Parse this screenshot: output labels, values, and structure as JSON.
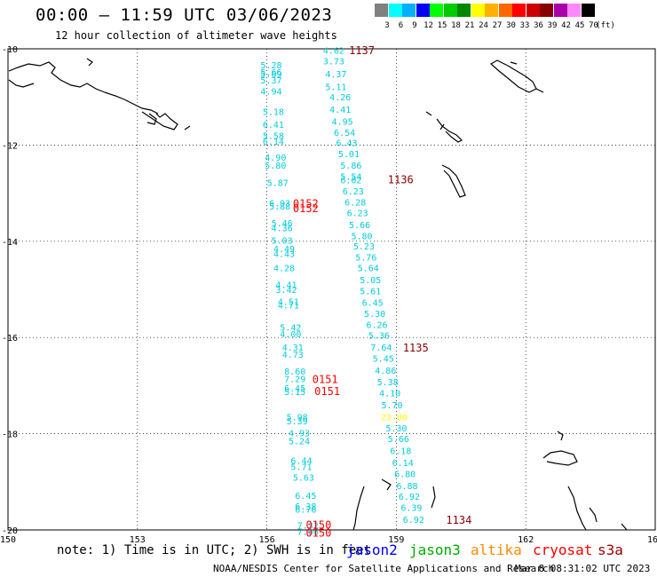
{
  "header": {
    "title": "00:00 – 11:59 UTC 03/06/2023",
    "subtitle": "12 hour collection of altimeter wave heights"
  },
  "legend": {
    "unit": "(ft)",
    "bins": [
      {
        "label": "3",
        "color": "#808080"
      },
      {
        "label": "6",
        "color": "#00ffff"
      },
      {
        "label": "9",
        "color": "#00b0ff"
      },
      {
        "label": "12",
        "color": "#0000ff"
      },
      {
        "label": "15",
        "color": "#00ff00"
      },
      {
        "label": "18",
        "color": "#00cc00"
      },
      {
        "label": "21",
        "color": "#008800"
      },
      {
        "label": "24",
        "color": "#ffff00"
      },
      {
        "label": "27",
        "color": "#ffb000"
      },
      {
        "label": "30",
        "color": "#ff6600"
      },
      {
        "label": "33",
        "color": "#ff0000"
      },
      {
        "label": "36",
        "color": "#cc0000"
      },
      {
        "label": "39",
        "color": "#880000"
      },
      {
        "label": "42",
        "color": "#aa00aa"
      },
      {
        "label": "45",
        "color": "#ff88ff"
      },
      {
        "label": "70",
        "color": "#000000"
      }
    ]
  },
  "map": {
    "lon_range": [
      150,
      165
    ],
    "lat_range": [
      -20,
      -10
    ],
    "lon_ticks": [
      "150",
      "153",
      "156",
      "159",
      "162",
      "165"
    ],
    "lat_ticks": [
      "-10",
      "-12",
      "-14",
      "-16",
      "-18",
      "-20"
    ],
    "grid": true
  },
  "passes": [
    {
      "label": "1137",
      "lon": 158.2,
      "lat": -10.02,
      "color": "#880000"
    },
    {
      "label": "1136",
      "lon": 159.1,
      "lat": -12.7,
      "color": "#880000"
    },
    {
      "label": "0152",
      "lon": 156.9,
      "lat": -13.2,
      "color": "#ff0000"
    },
    {
      "label": "0152",
      "lon": 156.9,
      "lat": -13.3,
      "color": "#ff0000"
    },
    {
      "label": "1135",
      "lon": 159.45,
      "lat": -16.2,
      "color": "#880000"
    },
    {
      "label": "0151",
      "lon": 157.35,
      "lat": -16.85,
      "color": "#ff0000"
    },
    {
      "label": "0151",
      "lon": 157.4,
      "lat": -17.1,
      "color": "#ff0000"
    },
    {
      "label": "1134",
      "lon": 160.45,
      "lat": -19.78,
      "color": "#880000"
    },
    {
      "label": "0150",
      "lon": 157.2,
      "lat": -19.88,
      "color": "#ff0000"
    },
    {
      "label": "0150",
      "lon": 157.2,
      "lat": -20.05,
      "color": "#ff0000"
    }
  ],
  "observations": [
    {
      "swh": "4.62",
      "lon": 157.55,
      "lat": -10.03
    },
    {
      "swh": "3.73",
      "lon": 157.55,
      "lat": -10.25
    },
    {
      "swh": "5.28",
      "lon": 156.1,
      "lat": -10.33
    },
    {
      "swh": "5.66",
      "lon": 156.1,
      "lat": -10.48
    },
    {
      "swh": "5.69",
      "lon": 156.1,
      "lat": -10.52
    },
    {
      "swh": "4.37",
      "lon": 157.6,
      "lat": -10.52
    },
    {
      "swh": "5.37",
      "lon": 156.1,
      "lat": -10.65
    },
    {
      "swh": "5.11",
      "lon": 157.6,
      "lat": -10.78
    },
    {
      "swh": "4.94",
      "lon": 156.1,
      "lat": -10.88
    },
    {
      "swh": "4.26",
      "lon": 157.7,
      "lat": -11.0
    },
    {
      "swh": "5.18",
      "lon": 156.15,
      "lat": -11.3
    },
    {
      "swh": "4.41",
      "lon": 157.7,
      "lat": -11.25
    },
    {
      "swh": "4.95",
      "lon": 157.75,
      "lat": -11.5
    },
    {
      "swh": "6.41",
      "lon": 156.15,
      "lat": -11.57
    },
    {
      "swh": "6.54",
      "lon": 157.8,
      "lat": -11.73
    },
    {
      "swh": "5.58",
      "lon": 156.15,
      "lat": -11.8
    },
    {
      "swh": "6.14",
      "lon": 156.15,
      "lat": -11.92
    },
    {
      "swh": "6.43",
      "lon": 157.85,
      "lat": -11.95
    },
    {
      "swh": "5.01",
      "lon": 157.9,
      "lat": -12.18
    },
    {
      "swh": "4.90",
      "lon": 156.2,
      "lat": -12.25
    },
    {
      "swh": "5.80",
      "lon": 156.2,
      "lat": -12.42
    },
    {
      "swh": "5.86",
      "lon": 157.95,
      "lat": -12.42
    },
    {
      "swh": "5.54",
      "lon": 157.95,
      "lat": -12.65
    },
    {
      "swh": "6.02",
      "lon": 157.95,
      "lat": -12.72
    },
    {
      "swh": "5.87",
      "lon": 156.25,
      "lat": -12.78
    },
    {
      "swh": "6.23",
      "lon": 158.0,
      "lat": -12.95
    },
    {
      "swh": "6.93",
      "lon": 156.3,
      "lat": -13.2
    },
    {
      "swh": "6.28",
      "lon": 158.05,
      "lat": -13.18
    },
    {
      "swh": "5.88",
      "lon": 156.3,
      "lat": -13.27
    },
    {
      "swh": "6.23",
      "lon": 158.1,
      "lat": -13.4
    },
    {
      "swh": "5.46",
      "lon": 156.35,
      "lat": -13.62
    },
    {
      "swh": "5.66",
      "lon": 158.15,
      "lat": -13.65
    },
    {
      "swh": "4.36",
      "lon": 156.35,
      "lat": -13.72
    },
    {
      "swh": "5.80",
      "lon": 158.2,
      "lat": -13.88
    },
    {
      "swh": "5.03",
      "lon": 156.35,
      "lat": -13.98
    },
    {
      "swh": "5.23",
      "lon": 158.25,
      "lat": -14.1
    },
    {
      "swh": "4.49",
      "lon": 156.4,
      "lat": -14.15
    },
    {
      "swh": "4.43",
      "lon": 156.4,
      "lat": -14.25
    },
    {
      "swh": "5.76",
      "lon": 158.3,
      "lat": -14.33
    },
    {
      "swh": "4.28",
      "lon": 156.4,
      "lat": -14.55
    },
    {
      "swh": "5.64",
      "lon": 158.35,
      "lat": -14.55
    },
    {
      "swh": "5.05",
      "lon": 158.4,
      "lat": -14.8
    },
    {
      "swh": "4.41",
      "lon": 156.45,
      "lat": -14.9
    },
    {
      "swh": "3.42",
      "lon": 156.45,
      "lat": -15.0
    },
    {
      "swh": "5.61",
      "lon": 158.4,
      "lat": -15.03
    },
    {
      "swh": "6.45",
      "lon": 158.45,
      "lat": -15.27
    },
    {
      "swh": "4.51",
      "lon": 156.5,
      "lat": -15.25
    },
    {
      "swh": "4.71",
      "lon": 156.5,
      "lat": -15.32
    },
    {
      "swh": "5.30",
      "lon": 158.5,
      "lat": -15.5
    },
    {
      "swh": "6.26",
      "lon": 158.55,
      "lat": -15.73
    },
    {
      "swh": "5.42",
      "lon": 156.55,
      "lat": -15.78
    },
    {
      "swh": "4.00",
      "lon": 156.55,
      "lat": -15.92
    },
    {
      "swh": "5.36",
      "lon": 158.6,
      "lat": -15.95
    },
    {
      "swh": "4.31",
      "lon": 156.6,
      "lat": -16.2
    },
    {
      "swh": "7.64",
      "lon": 158.65,
      "lat": -16.2
    },
    {
      "swh": "4.73",
      "lon": 156.6,
      "lat": -16.35
    },
    {
      "swh": "5.45",
      "lon": 158.7,
      "lat": -16.43
    },
    {
      "swh": "4.86",
      "lon": 158.75,
      "lat": -16.68
    },
    {
      "swh": "8.60",
      "lon": 156.65,
      "lat": -16.7
    },
    {
      "swh": "7.29",
      "lon": 156.65,
      "lat": -16.85
    },
    {
      "swh": "5.38",
      "lon": 158.8,
      "lat": -16.92
    },
    {
      "swh": "6.45",
      "lon": 156.65,
      "lat": -17.05
    },
    {
      "swh": "5.15",
      "lon": 156.65,
      "lat": -17.12
    },
    {
      "swh": "4.10",
      "lon": 158.85,
      "lat": -17.15
    },
    {
      "swh": "5.70",
      "lon": 158.9,
      "lat": -17.4
    },
    {
      "swh": "5.98",
      "lon": 156.7,
      "lat": -17.65
    },
    {
      "swh": "5.39",
      "lon": 156.7,
      "lat": -17.73
    },
    {
      "swh": "23.00",
      "lon": 158.95,
      "lat": -17.65,
      "color": "#ffff00"
    },
    {
      "swh": "5.30",
      "lon": 159.0,
      "lat": -17.88
    },
    {
      "swh": "4.93",
      "lon": 156.75,
      "lat": -17.98
    },
    {
      "swh": "5.24",
      "lon": 156.75,
      "lat": -18.15
    },
    {
      "swh": "5.66",
      "lon": 159.05,
      "lat": -18.1
    },
    {
      "swh": "6.18",
      "lon": 159.1,
      "lat": -18.35
    },
    {
      "swh": "6.44",
      "lon": 156.8,
      "lat": -18.55
    },
    {
      "swh": "6.14",
      "lon": 159.15,
      "lat": -18.6
    },
    {
      "swh": "5.71",
      "lon": 156.8,
      "lat": -18.68
    },
    {
      "swh": "6.80",
      "lon": 159.2,
      "lat": -18.83
    },
    {
      "swh": "5.63",
      "lon": 156.85,
      "lat": -18.9
    },
    {
      "swh": "6.88",
      "lon": 159.25,
      "lat": -19.08
    },
    {
      "swh": "6.45",
      "lon": 156.9,
      "lat": -19.28
    },
    {
      "swh": "6.92",
      "lon": 159.3,
      "lat": -19.3
    },
    {
      "swh": "6.38",
      "lon": 156.9,
      "lat": -19.5
    },
    {
      "swh": "6.76",
      "lon": 156.9,
      "lat": -19.57
    },
    {
      "swh": "6.39",
      "lon": 159.35,
      "lat": -19.53
    },
    {
      "swh": "6.92",
      "lon": 159.4,
      "lat": -19.78
    },
    {
      "swh": "7.32",
      "lon": 156.95,
      "lat": -19.9
    },
    {
      "swh": "7.06",
      "lon": 156.95,
      "lat": -20.03
    }
  ],
  "footer": {
    "note": "note: 1) Time is in UTC; 2) SWH is in feet",
    "satellites": [
      {
        "name": "jason2",
        "color": "#0000ff"
      },
      {
        "name": "jason3",
        "color": "#00aa00"
      },
      {
        "name": "altika",
        "color": "#ff8800"
      },
      {
        "name": "cryosat",
        "color": "#ff0000"
      },
      {
        "name": "s3a",
        "color": "#990000"
      }
    ],
    "credit": "NOAA/NESDIS Center for Satellite Applications and Research",
    "generated": "Mar  8 08:31:02 UTC 2023"
  }
}
